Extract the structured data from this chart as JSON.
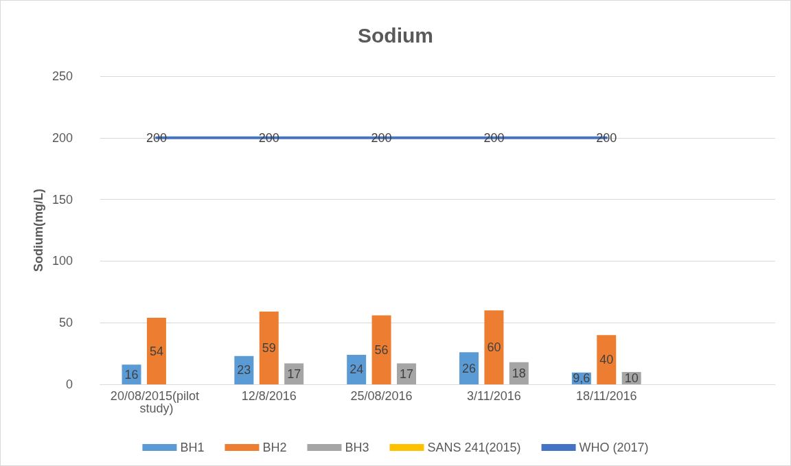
{
  "chart_data": {
    "type": "bar",
    "title": "Sodium",
    "ylabel": "Sodium(mg/L)",
    "categories": [
      "20/08/2015(pilot study)",
      "12/8/2016",
      "25/08/2016",
      "3/11/2016",
      "18/11/2016",
      null
    ],
    "ylim": [
      0,
      250
    ],
    "yticks": [
      0,
      50,
      100,
      150,
      200,
      250
    ],
    "grid": "y",
    "legend": "bottom",
    "marker": "none",
    "series": [
      {
        "name": "BH1",
        "color": "#5b9bd5",
        "values": [
          16,
          23,
          24,
          26,
          9.6,
          null
        ],
        "value_labels": [
          "16",
          "23",
          "24",
          "26",
          "9,6",
          null
        ]
      },
      {
        "name": "BH2",
        "color": "#ed7d31",
        "values": [
          54,
          59,
          56,
          60,
          40,
          null
        ],
        "value_labels": [
          "54",
          "59",
          "56",
          "60",
          "40",
          null
        ]
      },
      {
        "name": "BH3",
        "color": "#a5a5a5",
        "values": [
          null,
          17,
          17,
          18,
          10,
          null
        ],
        "value_labels": [
          null,
          "17",
          "17",
          "18",
          "10",
          null
        ]
      },
      {
        "name": "SANS 241(2015)",
        "type": "line",
        "color": "#ffc000",
        "values": [
          null,
          null,
          null,
          null,
          null,
          null
        ]
      },
      {
        "name": "WHO (2017)",
        "type": "line",
        "color": "#4472c4",
        "values": [
          200,
          200,
          200,
          200,
          200,
          null
        ],
        "value_labels": [
          "200",
          "200",
          "200",
          "200",
          "200",
          null
        ]
      }
    ]
  }
}
